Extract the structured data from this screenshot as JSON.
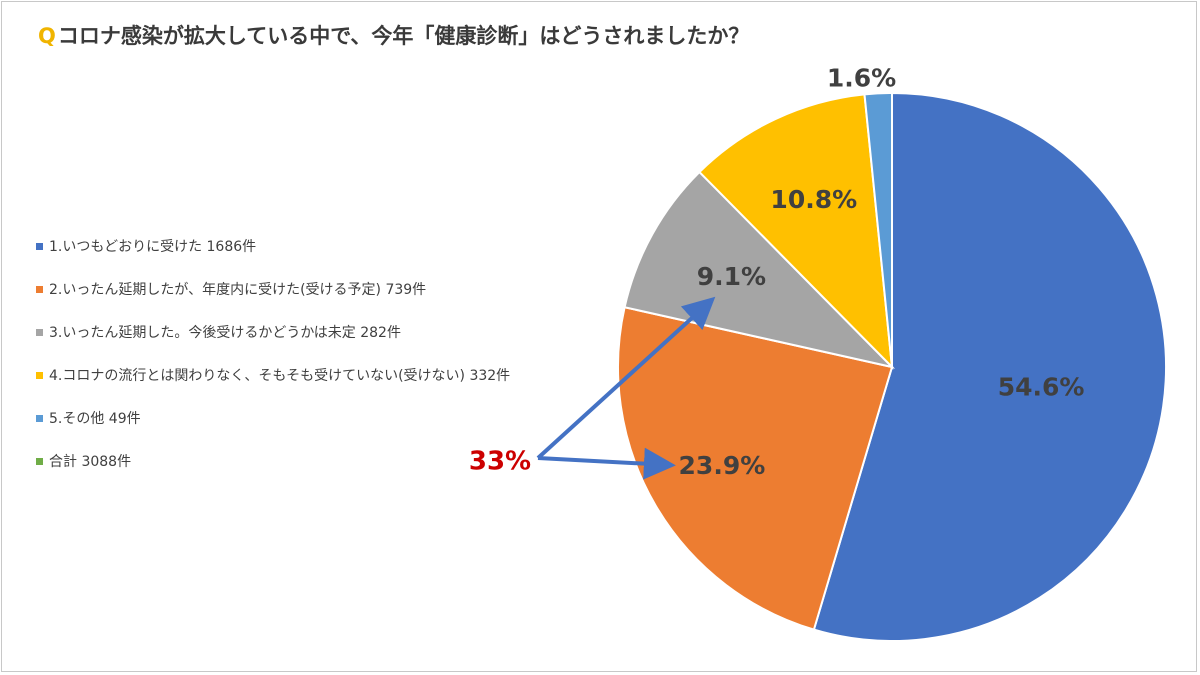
{
  "title": {
    "q_mark": "Q",
    "text": "コロナ感染が拡大している中で、今年「健康診断」はどうされましたか？"
  },
  "legend": {
    "items": [
      {
        "label": "1.いつもどおりに受けた 1686件",
        "color": "#4472c4"
      },
      {
        "label": "2.いったん延期したが、年度内に受けた(受ける予定) 739件",
        "color": "#ed7d31"
      },
      {
        "label": "3.いったん延期した。今後受けるかどうかは未定 282件",
        "color": "#a5a5a5"
      },
      {
        "label": "4.コロナの流行とは関わりなく、そもそも受けていない(受けない) 332件",
        "color": "#ffc000"
      },
      {
        "label": "5.その他 49件",
        "color": "#5b9bd5"
      },
      {
        "label": "合計 3088件",
        "color": "#70ad47"
      }
    ]
  },
  "chart_data": {
    "type": "pie",
    "slices": [
      {
        "name": "1.いつもどおりに受けた",
        "value": 54.6,
        "count": 1686,
        "label": "54.6%",
        "color": "#4472c4"
      },
      {
        "name": "2.いったん延期したが、年度内に受けた(受ける予定)",
        "value": 23.9,
        "count": 739,
        "label": "23.9%",
        "color": "#ed7d31"
      },
      {
        "name": "3.いったん延期した。今後受けるかどうかは未定",
        "value": 9.1,
        "count": 282,
        "label": "9.1%",
        "color": "#a5a5a5"
      },
      {
        "name": "4.コロナの流行とは関わりなく、そもそも受けていない(受けない)",
        "value": 10.8,
        "count": 332,
        "label": "10.8%",
        "color": "#ffc000"
      },
      {
        "name": "5.その他",
        "value": 1.6,
        "count": 49,
        "label": "1.6%",
        "color": "#5b9bd5"
      }
    ],
    "start_angle": "12 o'clock",
    "direction": "clockwise",
    "annotation": {
      "text": "33%",
      "color": "#cc0000",
      "arrow_color": "#4472c4",
      "points_to": [
        "9.1%",
        "23.9%"
      ]
    }
  }
}
